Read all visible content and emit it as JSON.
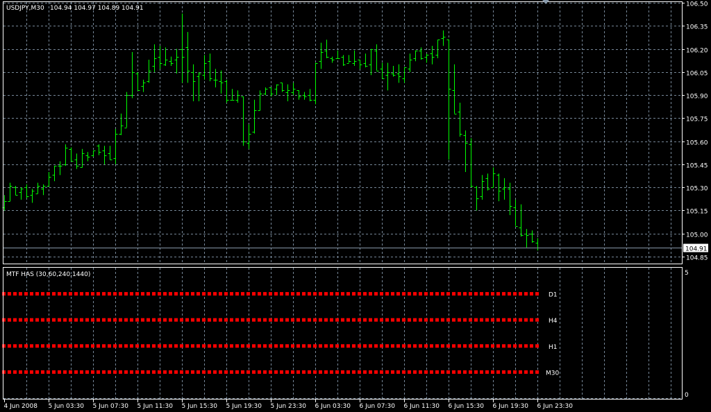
{
  "header": {
    "symbol": "USDJPY,M30",
    "ohlc": "104.94 104.97 104.89 104.91"
  },
  "colors": {
    "background": "#000000",
    "bars": "#00ff00",
    "grid": "#778899",
    "indicator": "#ff0000",
    "text": "#ffffff"
  },
  "price_axis": {
    "ticks": [
      "106.50",
      "106.35",
      "106.20",
      "106.05",
      "105.90",
      "105.75",
      "105.60",
      "105.45",
      "105.30",
      "105.15",
      "105.00",
      "104.85"
    ],
    "current_price": "104.91"
  },
  "indicator": {
    "title": "MTF HAS (30,60,240,1440)",
    "axis_max": "5",
    "axis_min": "0",
    "rows": [
      {
        "label": "D1",
        "value": 4
      },
      {
        "label": "H4",
        "value": 3
      },
      {
        "label": "H1",
        "value": 2
      },
      {
        "label": "M30",
        "value": 1
      }
    ]
  },
  "time_axis": {
    "labels": [
      {
        "bar": 0,
        "text": "4 Jun 2008"
      },
      {
        "bar": 8,
        "text": "5 Jun 03:30"
      },
      {
        "bar": 16,
        "text": "5 Jun 07:30"
      },
      {
        "bar": 24,
        "text": "5 Jun 11:30"
      },
      {
        "bar": 32,
        "text": "5 Jun 15:30"
      },
      {
        "bar": 40,
        "text": "5 Jun 19:30"
      },
      {
        "bar": 48,
        "text": "5 Jun 23:30"
      },
      {
        "bar": 56,
        "text": "6 Jun 03:30"
      },
      {
        "bar": 64,
        "text": "6 Jun 07:30"
      },
      {
        "bar": 72,
        "text": "6 Jun 11:30"
      },
      {
        "bar": 80,
        "text": "6 Jun 15:30"
      },
      {
        "bar": 88,
        "text": "6 Jun 19:30"
      },
      {
        "bar": 96,
        "text": "6 Jun 23:30"
      }
    ]
  },
  "chart_data": {
    "type": "ohlc",
    "ylim": [
      104.85,
      106.5
    ],
    "grid": true,
    "bars_ohlc": [
      [
        105.17,
        105.25,
        105.15,
        105.21
      ],
      [
        105.21,
        105.33,
        105.21,
        105.31
      ],
      [
        105.3,
        105.31,
        105.25,
        105.25
      ],
      [
        105.27,
        105.3,
        105.22,
        105.29
      ],
      [
        105.3,
        105.32,
        105.23,
        105.24
      ],
      [
        105.25,
        105.29,
        105.2,
        105.28
      ],
      [
        105.26,
        105.33,
        105.26,
        105.31
      ],
      [
        105.29,
        105.32,
        105.25,
        105.31
      ],
      [
        105.31,
        105.4,
        105.31,
        105.37
      ],
      [
        105.38,
        105.44,
        105.34,
        105.44
      ],
      [
        105.44,
        105.47,
        105.38,
        105.44
      ],
      [
        105.45,
        105.58,
        105.44,
        105.56
      ],
      [
        105.55,
        105.56,
        105.47,
        105.47
      ],
      [
        105.48,
        105.52,
        105.42,
        105.44
      ],
      [
        105.43,
        105.55,
        105.43,
        105.52
      ],
      [
        105.51,
        105.53,
        105.47,
        105.5
      ],
      [
        105.51,
        105.54,
        105.5,
        105.54
      ],
      [
        105.57,
        105.58,
        105.51,
        105.53
      ],
      [
        105.54,
        105.57,
        105.45,
        105.51
      ],
      [
        105.52,
        105.57,
        105.48,
        105.48
      ],
      [
        105.49,
        105.68,
        105.45,
        105.65
      ],
      [
        105.65,
        105.78,
        105.64,
        105.7
      ],
      [
        105.69,
        105.92,
        105.69,
        105.9
      ],
      [
        105.9,
        106.18,
        105.88,
        106.05
      ],
      [
        106.04,
        106.05,
        105.93,
        105.93
      ],
      [
        105.96,
        106.0,
        105.92,
        105.98
      ],
      [
        105.99,
        106.13,
        105.98,
        106.06
      ],
      [
        106.09,
        106.23,
        106.05,
        106.14
      ],
      [
        106.15,
        106.22,
        106.07,
        106.11
      ],
      [
        106.1,
        106.21,
        106.09,
        106.13
      ],
      [
        106.12,
        106.15,
        106.09,
        106.11
      ],
      [
        106.13,
        106.2,
        106.04,
        106.15
      ],
      [
        106.2,
        106.43,
        105.98,
        106.15
      ],
      [
        106.21,
        106.31,
        105.98,
        106.06
      ],
      [
        106.05,
        106.1,
        105.86,
        105.99
      ],
      [
        106.02,
        106.05,
        105.86,
        106.04
      ],
      [
        106.03,
        106.16,
        106.0,
        106.11
      ],
      [
        106.12,
        106.17,
        105.99,
        106.01
      ],
      [
        106.0,
        106.07,
        105.95,
        106.0
      ],
      [
        105.99,
        106.06,
        105.91,
        105.98
      ],
      [
        105.99,
        106.0,
        105.85,
        105.87
      ],
      [
        105.87,
        105.94,
        105.87,
        105.87
      ],
      [
        105.87,
        105.93,
        105.85,
        105.9
      ],
      [
        105.89,
        105.89,
        105.57,
        105.6
      ],
      [
        105.59,
        105.71,
        105.55,
        105.65
      ],
      [
        105.66,
        105.87,
        105.65,
        105.8
      ],
      [
        105.8,
        105.93,
        105.8,
        105.91
      ],
      [
        105.91,
        105.95,
        105.9,
        105.94
      ],
      [
        105.95,
        105.95,
        105.89,
        105.91
      ],
      [
        105.94,
        105.97,
        105.9,
        105.97
      ],
      [
        105.98,
        105.98,
        105.92,
        105.93
      ],
      [
        105.92,
        105.97,
        105.86,
        105.93
      ],
      [
        105.92,
        105.98,
        105.9,
        105.94
      ],
      [
        105.93,
        105.93,
        105.87,
        105.89
      ],
      [
        105.9,
        105.92,
        105.87,
        105.89
      ],
      [
        105.9,
        105.94,
        105.86,
        105.87
      ],
      [
        105.87,
        106.11,
        105.84,
        106.11
      ],
      [
        106.12,
        106.24,
        106.07,
        106.18
      ],
      [
        106.19,
        106.26,
        106.14,
        106.15
      ],
      [
        106.14,
        106.15,
        106.11,
        106.13
      ],
      [
        106.14,
        106.19,
        106.14,
        106.14
      ],
      [
        106.15,
        106.16,
        106.09,
        106.1
      ],
      [
        106.11,
        106.16,
        106.11,
        106.12
      ],
      [
        106.11,
        106.19,
        106.09,
        106.12
      ],
      [
        106.13,
        106.13,
        106.07,
        106.1
      ],
      [
        106.11,
        106.17,
        106.08,
        106.09
      ],
      [
        106.1,
        106.2,
        106.03,
        106.2
      ],
      [
        106.19,
        106.23,
        106.06,
        106.06
      ],
      [
        106.07,
        106.11,
        106.01,
        106.01
      ],
      [
        106.03,
        106.11,
        105.93,
        106.05
      ],
      [
        106.04,
        106.09,
        106.02,
        106.03
      ],
      [
        106.04,
        106.1,
        105.98,
        106.02
      ],
      [
        106.01,
        106.08,
        105.98,
        106.08
      ],
      [
        106.07,
        106.17,
        106.05,
        106.13
      ],
      [
        106.14,
        106.19,
        106.12,
        106.19
      ],
      [
        106.19,
        106.21,
        106.13,
        106.14
      ],
      [
        106.15,
        106.17,
        106.11,
        106.16
      ],
      [
        106.17,
        106.22,
        106.1,
        106.15
      ],
      [
        106.16,
        106.26,
        106.14,
        106.26
      ],
      [
        106.27,
        106.32,
        106.22,
        106.28
      ],
      [
        106.26,
        106.26,
        105.48,
        105.94
      ],
      [
        105.93,
        106.1,
        105.78,
        105.78
      ],
      [
        105.79,
        105.85,
        105.63,
        105.65
      ],
      [
        105.64,
        105.67,
        105.4,
        105.59
      ],
      [
        105.58,
        105.62,
        105.3,
        105.31
      ],
      [
        105.3,
        105.31,
        105.15,
        105.23
      ],
      [
        105.24,
        105.38,
        105.22,
        105.34
      ],
      [
        105.36,
        105.39,
        105.28,
        105.29
      ],
      [
        105.3,
        105.43,
        105.3,
        105.39
      ],
      [
        105.38,
        105.39,
        105.21,
        105.28
      ],
      [
        105.29,
        105.36,
        105.22,
        105.3
      ],
      [
        105.29,
        105.33,
        105.12,
        105.18
      ],
      [
        105.17,
        105.22,
        105.05,
        105.05
      ],
      [
        105.04,
        105.19,
        104.98,
        104.99
      ],
      [
        105.0,
        105.03,
        104.91,
        104.99
      ],
      [
        105.0,
        105.02,
        104.94,
        104.95
      ],
      [
        104.94,
        104.97,
        104.89,
        104.91
      ]
    ]
  }
}
